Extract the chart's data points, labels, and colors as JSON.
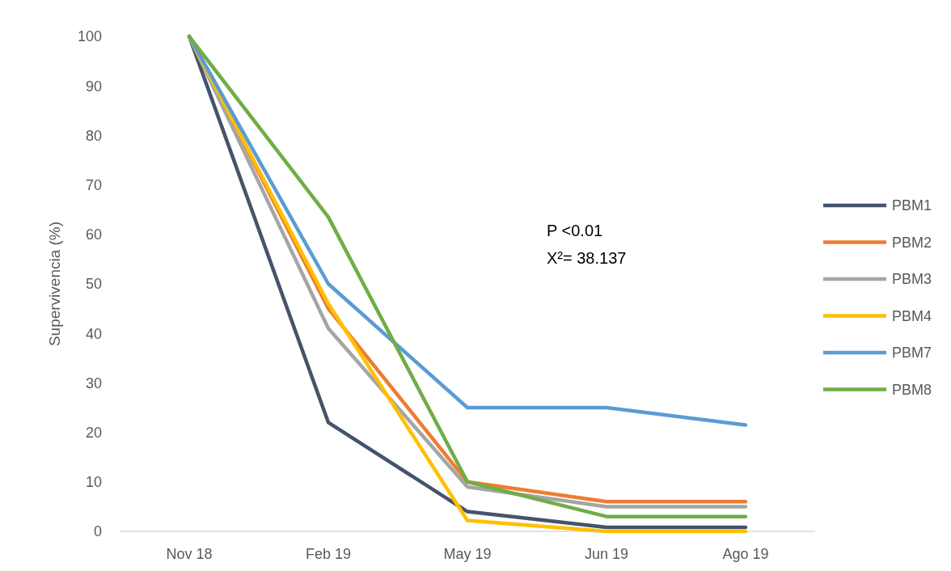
{
  "chart_data": {
    "type": "line",
    "ylabel": "Supervivencia (%)",
    "categories": [
      "Nov 18",
      "Feb 19",
      "May 19",
      "Jun 19",
      "Ago 19"
    ],
    "ylim": [
      0,
      100
    ],
    "yticks": [
      0,
      10,
      20,
      30,
      40,
      50,
      60,
      70,
      80,
      90,
      100
    ],
    "grid": false,
    "legend": "right",
    "marker": "none",
    "line_style": "solid",
    "annotations": [
      "P <0.01",
      "X²= 38.137"
    ],
    "series": [
      {
        "name": "PBM1",
        "color": "#44546a",
        "values": [
          100,
          22,
          4,
          0.8,
          0.8
        ]
      },
      {
        "name": "PBM2",
        "color": "#ed7d31",
        "values": [
          100,
          45,
          10,
          6,
          6
        ]
      },
      {
        "name": "PBM3",
        "color": "#a5a5a5",
        "values": [
          100,
          41,
          9,
          5,
          5
        ]
      },
      {
        "name": "PBM4",
        "color": "#ffc000",
        "values": [
          100,
          46,
          2.2,
          0,
          0
        ]
      },
      {
        "name": "PBM7",
        "color": "#5b9bd5",
        "values": [
          100,
          50,
          25,
          25,
          21.5
        ]
      },
      {
        "name": "PBM8",
        "color": "#70ad47",
        "values": [
          100,
          63.5,
          10,
          3,
          3
        ]
      }
    ]
  }
}
